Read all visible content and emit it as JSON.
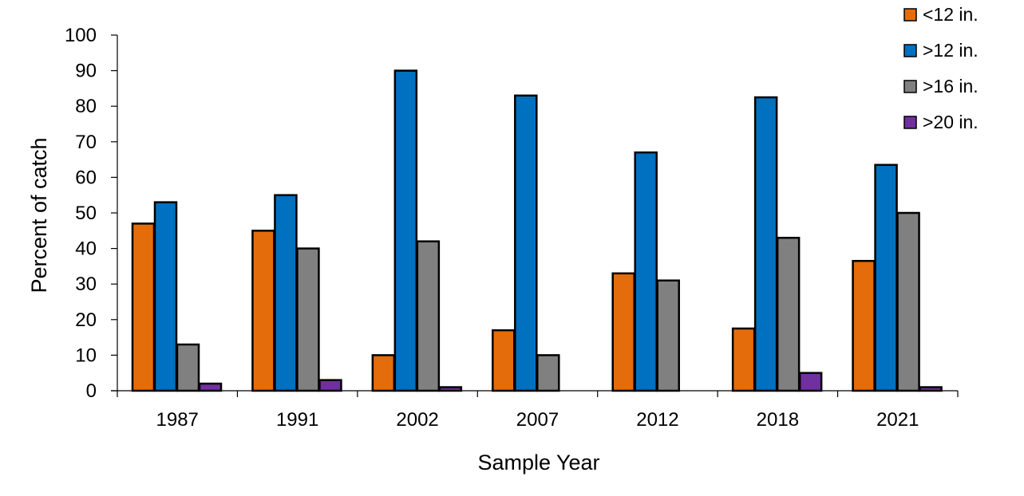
{
  "chart_data": {
    "type": "bar",
    "title": "",
    "xlabel": "Sample Year",
    "ylabel": "Percent of catch",
    "ylim": [
      0,
      100
    ],
    "yticks": [
      0,
      10,
      20,
      30,
      40,
      50,
      60,
      70,
      80,
      90,
      100
    ],
    "grid": false,
    "legend_position": "top-right",
    "categories": [
      "1987",
      "1991",
      "2002",
      "2007",
      "2012",
      "2018",
      "2021"
    ],
    "series": [
      {
        "name": "<12 in.",
        "color": "#E46C0A",
        "values": [
          47,
          45,
          10,
          17,
          33,
          17.5,
          36.5
        ]
      },
      {
        "name": ">12 in.",
        "color": "#0070C0",
        "values": [
          53,
          55,
          90,
          83,
          67,
          82.5,
          63.5
        ]
      },
      {
        "name": ">16 in.",
        "color": "#808080",
        "values": [
          13,
          40,
          42,
          10,
          31,
          43,
          50
        ]
      },
      {
        "name": ">20 in.",
        "color": "#7030A0",
        "values": [
          2,
          3,
          1,
          0,
          0,
          5,
          1
        ]
      }
    ]
  }
}
